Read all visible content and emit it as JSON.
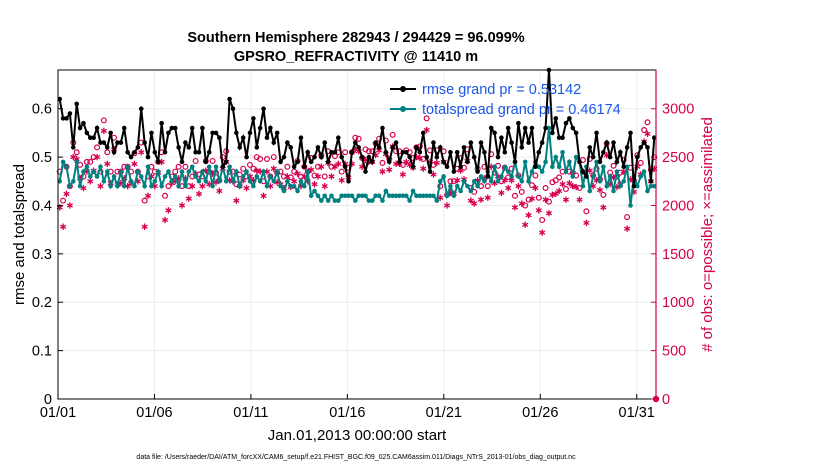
{
  "chart_data": {
    "type": "line",
    "title": "Southern Hemisphere 282943 / 294429 = 96.099%",
    "subtitle": "GPSRO_REFRACTIVITY @ 11410 m",
    "xlabel": "Jan.01,2013 00:00:00 start",
    "ylabel": "rmse and totalspread",
    "y2label": "# of obs: o=possible; ×=assimilated",
    "footnote": "data file: /Users/raeder/DAI/ATM_forcXX/CAM6_setup/f.e21.FHIST_BGC.f09_025.CAM6assim.011/Diags_NTrS_2013-01/obs_diag_output.nc",
    "xlim": [
      1,
      32
    ],
    "ylim": [
      0,
      0.68
    ],
    "y2lim": [
      0,
      3400
    ],
    "x_ticks": [
      1,
      6,
      11,
      16,
      21,
      26,
      31
    ],
    "x_tick_labels": [
      "01/01",
      "01/06",
      "01/11",
      "01/16",
      "01/21",
      "01/26",
      "01/31"
    ],
    "y_ticks": [
      0,
      0.1,
      0.2,
      0.3,
      0.4,
      0.5,
      0.6
    ],
    "y_tick_labels": [
      "0",
      "0.1",
      "0.2",
      "0.3",
      "0.4",
      "0.5",
      "0.6"
    ],
    "y2_ticks": [
      0,
      500,
      1000,
      1500,
      2000,
      2500,
      3000
    ],
    "y2_tick_labels": [
      "0",
      "500",
      "1000",
      "1500",
      "2000",
      "2500",
      "3000"
    ],
    "grid": true,
    "legend_position": "top-right",
    "colors": {
      "rmse": "#000000",
      "spread": "#008080",
      "obs": "#d6004f",
      "legend_text": "#1a56e8"
    },
    "series": [
      {
        "name": "rmse grand pr = 0.53142",
        "axis": "left",
        "values": [
          0.62,
          0.58,
          0.58,
          0.59,
          0.52,
          0.61,
          0.56,
          0.57,
          0.55,
          0.54,
          0.54,
          0.56,
          0.53,
          0.53,
          0.52,
          0.55,
          0.51,
          0.53,
          0.53,
          0.56,
          0.51,
          0.5,
          0.51,
          0.52,
          0.6,
          0.53,
          0.5,
          0.55,
          0.51,
          0.49,
          0.57,
          0.51,
          0.55,
          0.56,
          0.56,
          0.52,
          0.49,
          0.53,
          0.52,
          0.56,
          0.51,
          0.51,
          0.56,
          0.49,
          0.51,
          0.55,
          0.55,
          0.54,
          0.48,
          0.49,
          0.62,
          0.6,
          0.55,
          0.52,
          0.54,
          0.5,
          0.55,
          0.58,
          0.52,
          0.56,
          0.6,
          0.54,
          0.56,
          0.53,
          0.55,
          0.49,
          0.5,
          0.53,
          0.52,
          0.48,
          0.49,
          0.54,
          0.48,
          0.51,
          0.49,
          0.5,
          0.52,
          0.5,
          0.53,
          0.49,
          0.51,
          0.51,
          0.54,
          0.5,
          0.48,
          0.45,
          0.51,
          0.53,
          0.52,
          0.5,
          0.47,
          0.5,
          0.49,
          0.53,
          0.52,
          0.56,
          0.51,
          0.49,
          0.52,
          0.53,
          0.49,
          0.51,
          0.51,
          0.5,
          0.48,
          0.52,
          0.51,
          0.55,
          0.5,
          0.47,
          0.53,
          0.5,
          0.52,
          0.49,
          0.48,
          0.51,
          0.47,
          0.51,
          0.48,
          0.52,
          0.49,
          0.53,
          0.5,
          0.47,
          0.53,
          0.51,
          0.46,
          0.56,
          0.55,
          0.5,
          0.54,
          0.51,
          0.56,
          0.53,
          0.49,
          0.57,
          0.52,
          0.56,
          0.53,
          0.56,
          0.48,
          0.51,
          0.53,
          0.56,
          0.68,
          0.55,
          0.58,
          0.54,
          0.54,
          0.57,
          0.58,
          0.56,
          0.55,
          0.49,
          0.47,
          0.46,
          0.52,
          0.5,
          0.55,
          0.49,
          0.51,
          0.53,
          0.5,
          0.53,
          0.49,
          0.51,
          0.48,
          0.52,
          0.55,
          0.44,
          0.5,
          0.52,
          0.53,
          0.52,
          0.45,
          0.54
        ]
      },
      {
        "name": "totalspread grand pr = 0.46174",
        "axis": "left",
        "values": [
          0.45,
          0.49,
          0.48,
          0.44,
          0.45,
          0.49,
          0.44,
          0.47,
          0.48,
          0.46,
          0.47,
          0.46,
          0.48,
          0.45,
          0.47,
          0.44,
          0.46,
          0.44,
          0.47,
          0.44,
          0.48,
          0.45,
          0.44,
          0.47,
          0.46,
          0.44,
          0.48,
          0.44,
          0.45,
          0.47,
          0.44,
          0.46,
          0.47,
          0.45,
          0.46,
          0.44,
          0.47,
          0.44,
          0.47,
          0.48,
          0.46,
          0.45,
          0.47,
          0.45,
          0.48,
          0.44,
          0.48,
          0.45,
          0.48,
          0.45,
          0.48,
          0.45,
          0.47,
          0.44,
          0.46,
          0.47,
          0.45,
          0.44,
          0.46,
          0.45,
          0.47,
          0.44,
          0.46,
          0.45,
          0.47,
          0.44,
          0.43,
          0.45,
          0.44,
          0.44,
          0.43,
          0.45,
          0.44,
          0.47,
          0.42,
          0.43,
          0.42,
          0.41,
          0.42,
          0.41,
          0.42,
          0.41,
          0.41,
          0.42,
          0.42,
          0.42,
          0.42,
          0.41,
          0.42,
          0.42,
          0.42,
          0.41,
          0.41,
          0.42,
          0.42,
          0.41,
          0.43,
          0.42,
          0.42,
          0.42,
          0.42,
          0.42,
          0.42,
          0.41,
          0.43,
          0.42,
          0.42,
          0.42,
          0.42,
          0.42,
          0.42,
          0.41,
          0.45,
          0.46,
          0.42,
          0.44,
          0.42,
          0.44,
          0.43,
          0.45,
          0.44,
          0.43,
          0.45,
          0.44,
          0.46,
          0.45,
          0.47,
          0.45,
          0.48,
          0.45,
          0.46,
          0.48,
          0.47,
          0.46,
          0.49,
          0.46,
          0.45,
          0.49,
          0.45,
          0.47,
          0.49,
          0.48,
          0.47,
          0.49,
          0.56,
          0.48,
          0.5,
          0.48,
          0.51,
          0.47,
          0.49,
          0.46,
          0.5,
          0.49,
          0.44,
          0.48,
          0.43,
          0.46,
          0.49,
          0.45,
          0.48,
          0.44,
          0.46,
          0.43,
          0.47,
          0.44,
          0.45,
          0.48,
          0.4,
          0.46,
          0.44,
          0.46,
          0.47,
          0.43,
          0.44,
          0.44
        ]
      },
      {
        "name": "# of obs possible",
        "axis": "right",
        "marker": "circle",
        "values": [
          2350,
          2050,
          2400,
          2200,
          2650,
          2550,
          2420,
          2300,
          2450,
          2450,
          2500,
          2600,
          2350,
          2880,
          2550,
          2350,
          2700,
          2350,
          2350,
          2400,
          2400,
          2350,
          2540,
          2350,
          2650,
          2050,
          2300,
          2400,
          2350,
          2450,
          2550,
          2100,
          2200,
          2300,
          2350,
          2400,
          2200,
          2400,
          2200,
          2300,
          2460,
          2320,
          2300,
          2460,
          2350,
          2460,
          2340,
          2260,
          2500,
          2560,
          2350,
          2350,
          2220,
          2320,
          2380,
          2300,
          2420,
          2380,
          2500,
          2480,
          2250,
          2480,
          2300,
          2500,
          2340,
          2350,
          2300,
          2400,
          2290,
          2350,
          2460,
          2300,
          2400,
          2350,
          2490,
          2310,
          2400,
          2520,
          2300,
          2560,
          2400,
          2510,
          2550,
          2350,
          2550,
          2390,
          2550,
          2700,
          2690,
          2490,
          2580,
          2560,
          2560,
          2640,
          2690,
          2440,
          2670,
          2480,
          2730,
          2560,
          2560,
          2420,
          2570,
          2550,
          2490,
          2600,
          2610,
          2480,
          2900,
          2570,
          2420,
          2570,
          2200,
          2560,
          2110,
          2250,
          2250,
          2380,
          2490,
          2390,
          2580,
          2180,
          2140,
          2380,
          2200,
          2400,
          2200,
          2530,
          2340,
          2410,
          2250,
          2390,
          2290,
          2380,
          2100,
          2310,
          2140,
          2000,
          2060,
          2210,
          2310,
          2080,
          1850,
          2180,
          2040,
          2240,
          2260,
          2290,
          2350,
          2170,
          2350,
          2340,
          2310,
          2180,
          2470,
          1940,
          2480,
          2310,
          2380,
          2270,
          2110,
          2640,
          2340,
          2410,
          2300,
          2340,
          2470,
          1880,
          2390,
          2260,
          2520,
          2440,
          2780,
          2860,
          2370,
          2500
        ]
      },
      {
        "name": "# of obs assimilated",
        "axis": "right",
        "marker": "asterisk",
        "values": [
          1980,
          1780,
          2120,
          2000,
          2500,
          2480,
          2280,
          2180,
          2350,
          2250,
          2360,
          2500,
          2200,
          2770,
          2430,
          2230,
          2580,
          2220,
          2230,
          2280,
          2200,
          2230,
          2430,
          2250,
          2550,
          1780,
          2100,
          2300,
          2200,
          2340,
          2450,
          1850,
          1950,
          2230,
          2250,
          2280,
          2000,
          2280,
          2070,
          2200,
          2330,
          2120,
          2200,
          2360,
          2220,
          2330,
          2240,
          2150,
          2380,
          2450,
          2260,
          2250,
          2050,
          2200,
          2260,
          2180,
          2300,
          2260,
          2360,
          2350,
          2100,
          2350,
          2200,
          2380,
          2240,
          2220,
          2180,
          2300,
          2190,
          2250,
          2330,
          2200,
          2300,
          2250,
          2370,
          2220,
          2300,
          2400,
          2200,
          2440,
          2300,
          2400,
          2430,
          2260,
          2430,
          2290,
          2430,
          2580,
          2560,
          2400,
          2470,
          2450,
          2450,
          2520,
          2570,
          2350,
          2530,
          2370,
          2610,
          2430,
          2430,
          2320,
          2450,
          2420,
          2390,
          2500,
          2490,
          2380,
          2780,
          2450,
          2320,
          2440,
          2080,
          2450,
          2000,
          2130,
          2120,
          2260,
          2360,
          2270,
          2460,
          2050,
          2020,
          2260,
          2060,
          2280,
          2080,
          2400,
          2230,
          2300,
          2130,
          2260,
          2180,
          2260,
          1980,
          2200,
          2020,
          1800,
          1900,
          2070,
          2180,
          1950,
          1720,
          2060,
          1920,
          2110,
          2120,
          2150,
          2220,
          2060,
          2230,
          2200,
          2190,
          2060,
          2350,
          1820,
          2360,
          2200,
          2260,
          2160,
          1980,
          2520,
          2220,
          2290,
          2190,
          2220,
          2350,
          1760,
          2270,
          2140,
          2400,
          2320,
          2660,
          2740,
          2250,
          2380
        ]
      }
    ]
  }
}
